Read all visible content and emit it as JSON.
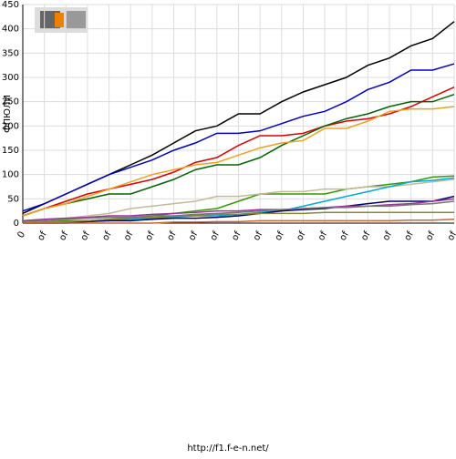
{
  "chart_data": {
    "type": "line",
    "y_label": "ФПЮЛИ",
    "footer": "http://f1.f-e-n.net/",
    "categories": [
      "0",
      "of",
      "of",
      "of",
      "of",
      "of",
      "of",
      "of",
      "of",
      "of",
      "of",
      "of",
      "of",
      "of",
      "of",
      "of",
      "of",
      "of",
      "of",
      "of",
      "of"
    ],
    "ylim": [
      0,
      450
    ],
    "yticks": [
      0,
      50,
      100,
      150,
      200,
      250,
      300,
      350,
      400,
      450
    ],
    "grid": true,
    "series": [
      {
        "color": "#000000",
        "values": [
          20,
          40,
          60,
          80,
          100,
          120,
          140,
          165,
          190,
          200,
          225,
          225,
          250,
          270,
          285,
          300,
          325,
          340,
          365,
          380,
          415
        ]
      },
      {
        "color": "#0000cc",
        "values": [
          25,
          40,
          60,
          80,
          100,
          115,
          130,
          150,
          165,
          185,
          185,
          190,
          205,
          220,
          230,
          250,
          275,
          290,
          315,
          315,
          328
        ]
      },
      {
        "color": "#dd0000",
        "values": [
          15,
          30,
          45,
          60,
          70,
          80,
          90,
          105,
          125,
          135,
          160,
          180,
          180,
          185,
          200,
          210,
          215,
          225,
          240,
          260,
          280
        ]
      },
      {
        "color": "#006600",
        "values": [
          15,
          30,
          40,
          50,
          60,
          60,
          75,
          90,
          110,
          120,
          120,
          135,
          160,
          180,
          200,
          215,
          225,
          240,
          250,
          250,
          265
        ]
      },
      {
        "color": "#f0a020",
        "values": [
          15,
          30,
          40,
          55,
          70,
          85,
          100,
          110,
          120,
          125,
          140,
          155,
          165,
          170,
          195,
          195,
          210,
          230,
          235,
          235,
          240
        ]
      },
      {
        "color": "#339900",
        "values": [
          0,
          2,
          5,
          5,
          8,
          10,
          15,
          20,
          25,
          30,
          45,
          60,
          60,
          60,
          60,
          70,
          75,
          80,
          85,
          95,
          97
        ]
      },
      {
        "color": "#c8b89a",
        "values": [
          5,
          8,
          10,
          15,
          20,
          30,
          35,
          40,
          45,
          55,
          55,
          60,
          65,
          65,
          70,
          70,
          75,
          75,
          80,
          85,
          90
        ]
      },
      {
        "color": "#00aadd",
        "values": [
          0,
          0,
          0,
          5,
          5,
          8,
          10,
          12,
          15,
          15,
          18,
          22,
          25,
          35,
          45,
          55,
          65,
          75,
          85,
          88,
          93
        ]
      },
      {
        "color": "#000066",
        "values": [
          0,
          0,
          0,
          3,
          5,
          5,
          8,
          10,
          10,
          12,
          15,
          20,
          25,
          28,
          30,
          35,
          40,
          45,
          45,
          45,
          55
        ]
      },
      {
        "color": "#993399",
        "values": [
          5,
          8,
          10,
          12,
          15,
          15,
          18,
          20,
          22,
          25,
          25,
          28,
          28,
          30,
          32,
          35,
          35,
          38,
          40,
          45,
          50
        ]
      },
      {
        "color": "#888833",
        "values": [
          0,
          2,
          3,
          5,
          8,
          10,
          12,
          14,
          16,
          18,
          18,
          20,
          20,
          20,
          22,
          22,
          22,
          22,
          22,
          22,
          22
        ]
      },
      {
        "color": "#777777",
        "values": [
          3,
          5,
          8,
          10,
          12,
          12,
          15,
          15,
          18,
          20,
          22,
          25,
          28,
          30,
          32,
          32,
          35,
          35,
          38,
          40,
          45
        ]
      },
      {
        "color": "#cc6633",
        "values": [
          0,
          0,
          0,
          0,
          0,
          0,
          0,
          2,
          2,
          3,
          3,
          5,
          5,
          5,
          5,
          5,
          5,
          5,
          6,
          6,
          8
        ]
      }
    ]
  }
}
